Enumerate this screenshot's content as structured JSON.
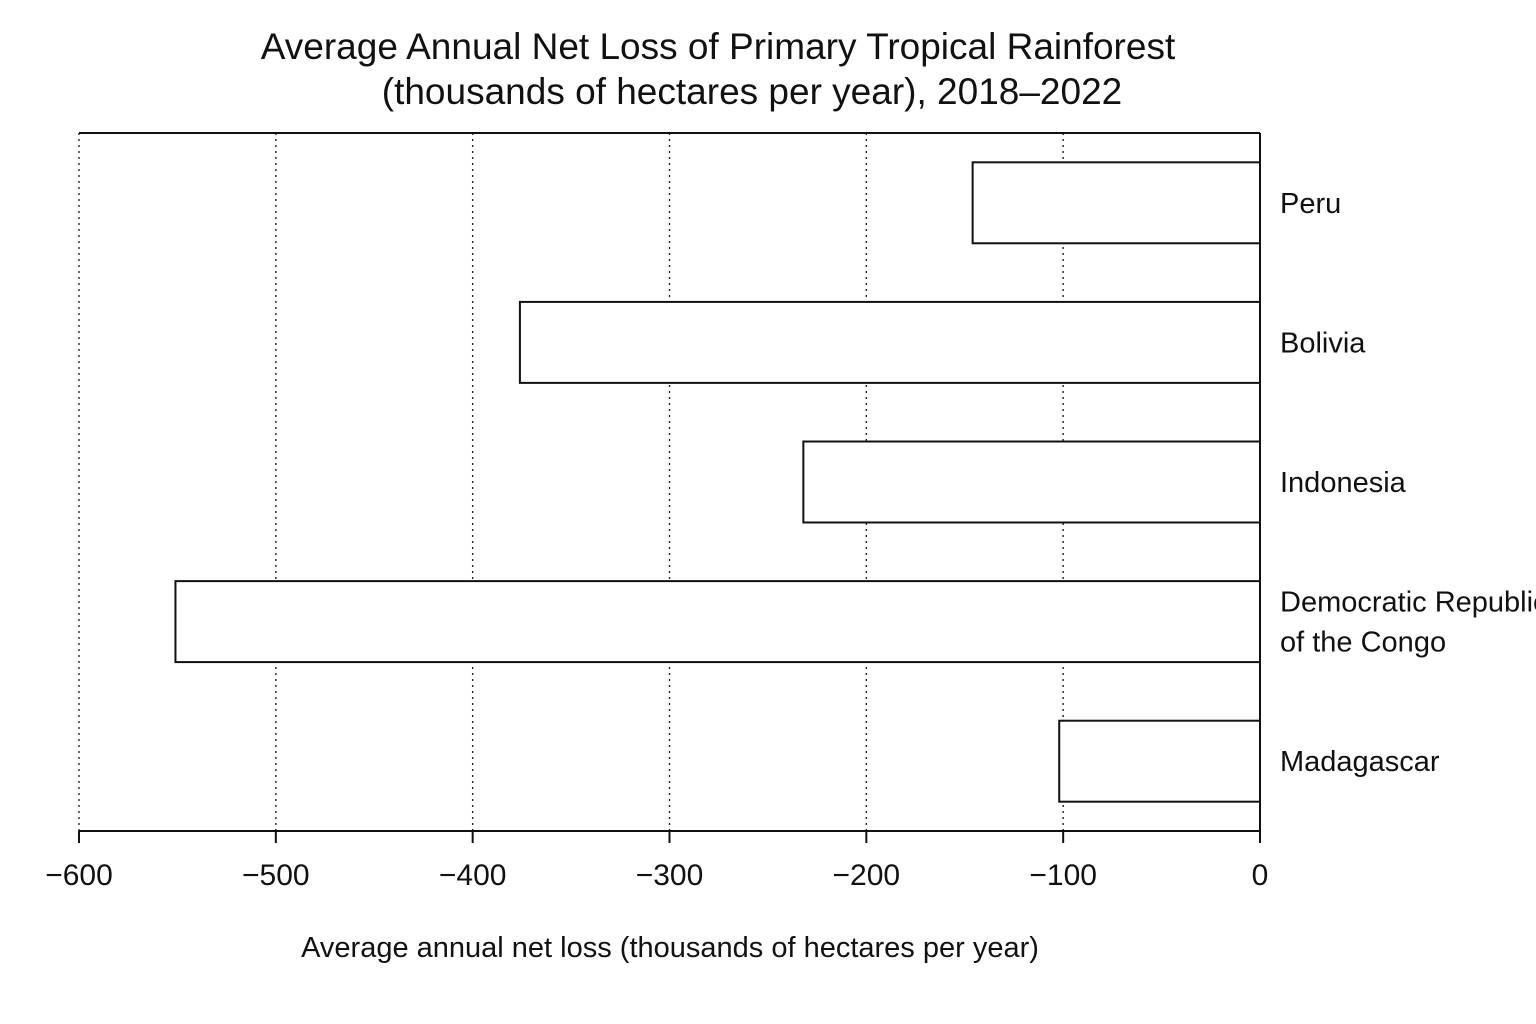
{
  "chart_data": {
    "type": "bar",
    "orientation": "horizontal",
    "title": [
      "Average Annual Net Loss of Primary Tropical Rainforest",
      "(thousands of hectares per year), 2018–2022"
    ],
    "xlabel": "Average annual net loss (thousands of hectares per year)",
    "ylabel": "",
    "categories": [
      [
        "Peru"
      ],
      [
        "Bolivia"
      ],
      [
        "Indonesia"
      ],
      [
        "Democratic Republic",
        "of the Congo"
      ],
      [
        "Madagascar"
      ]
    ],
    "values": [
      -146,
      -376,
      -232,
      -551,
      -102
    ],
    "xlim": [
      -600,
      0
    ],
    "xticks": [
      -600,
      -500,
      -400,
      -300,
      -200,
      -100,
      0
    ],
    "xtick_labels": [
      "−600",
      "−500",
      "−400",
      "−300",
      "−200",
      "−100",
      "0"
    ],
    "grid": "vertical dotted",
    "legend": "none",
    "category_label_position": "right",
    "bar_fill": "#ffffff",
    "bar_stroke": "#111111"
  }
}
